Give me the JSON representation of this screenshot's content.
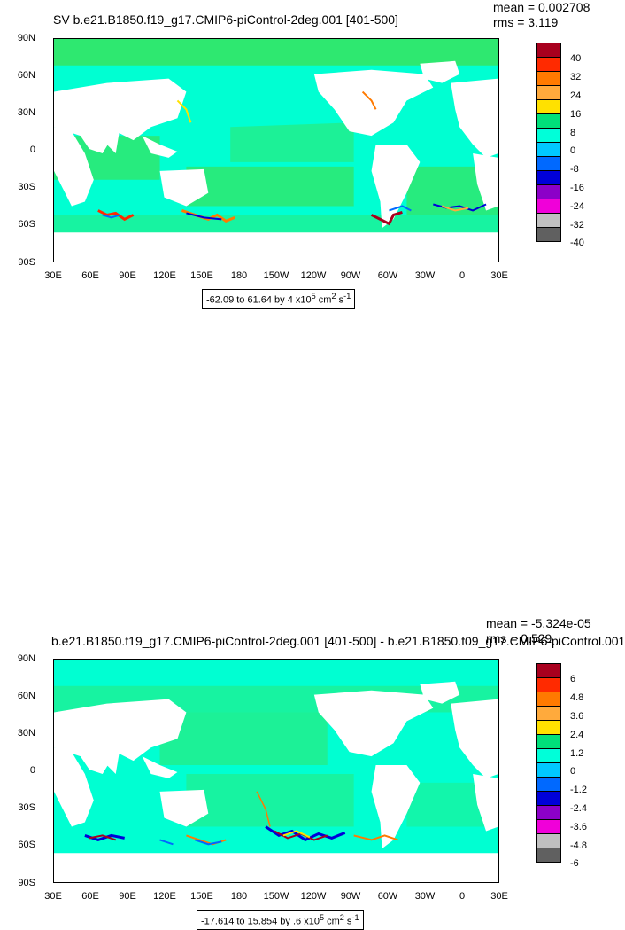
{
  "panels": [
    {
      "title": "SV b.e21.B1850.f19_g17.CMIP6-piControl-2deg.001 [401-500]",
      "stats": {
        "mean": "mean = 0.002708",
        "rms": "rms = 3.119"
      },
      "range_text": "-62.09 to 61.64 by 4 x10",
      "range_exp": "5",
      "range_units": " cm",
      "range_units_exp": "2",
      "range_suffix": " s",
      "range_suffix_exp": "-1",
      "colorbar_labels": [
        "40",
        "32",
        "24",
        "16",
        "8",
        "0",
        "-8",
        "-16",
        "-24",
        "-32",
        "-40"
      ]
    },
    {
      "title": "b.e21.B1850.f19_g17.CMIP6-piControl-2deg.001 [401-500] - b.e21.B1850.f09_g17.CMIP6-piControl.001",
      "stats": {
        "mean": "mean = -5.324e-05",
        "rms": "rms = 0.529"
      },
      "range_text": "-17.614 to 15.854 by .6 x10",
      "range_exp": "5",
      "range_units": " cm",
      "range_units_exp": "2",
      "range_suffix": " s",
      "range_suffix_exp": "-1",
      "colorbar_labels": [
        "6",
        "4.8",
        "3.6",
        "2.4",
        "1.2",
        "0",
        "-1.2",
        "-2.4",
        "-3.6",
        "-4.8",
        "-6"
      ]
    }
  ],
  "latitude_labels": [
    "90N",
    "60N",
    "30N",
    "0",
    "30S",
    "60S",
    "90S"
  ],
  "longitude_labels": [
    "30E",
    "60E",
    "90E",
    "120E",
    "150E",
    "180",
    "150W",
    "120W",
    "90W",
    "60W",
    "30W",
    "0",
    "30E"
  ],
  "colorbar_colors": [
    "#a8001e",
    "#ff2a00",
    "#ff7a00",
    "#ffaa3c",
    "#ffe100",
    "#00e07a",
    "#00ffd9",
    "#00c8ff",
    "#0069ff",
    "#0000d9",
    "#8c00c8",
    "#f000d9",
    "#c0c0c0",
    "#606060"
  ],
  "colors": {
    "ocean_primary": "#00ffd2",
    "ocean_secondary": "#2ee870",
    "land": "#ffffff"
  }
}
